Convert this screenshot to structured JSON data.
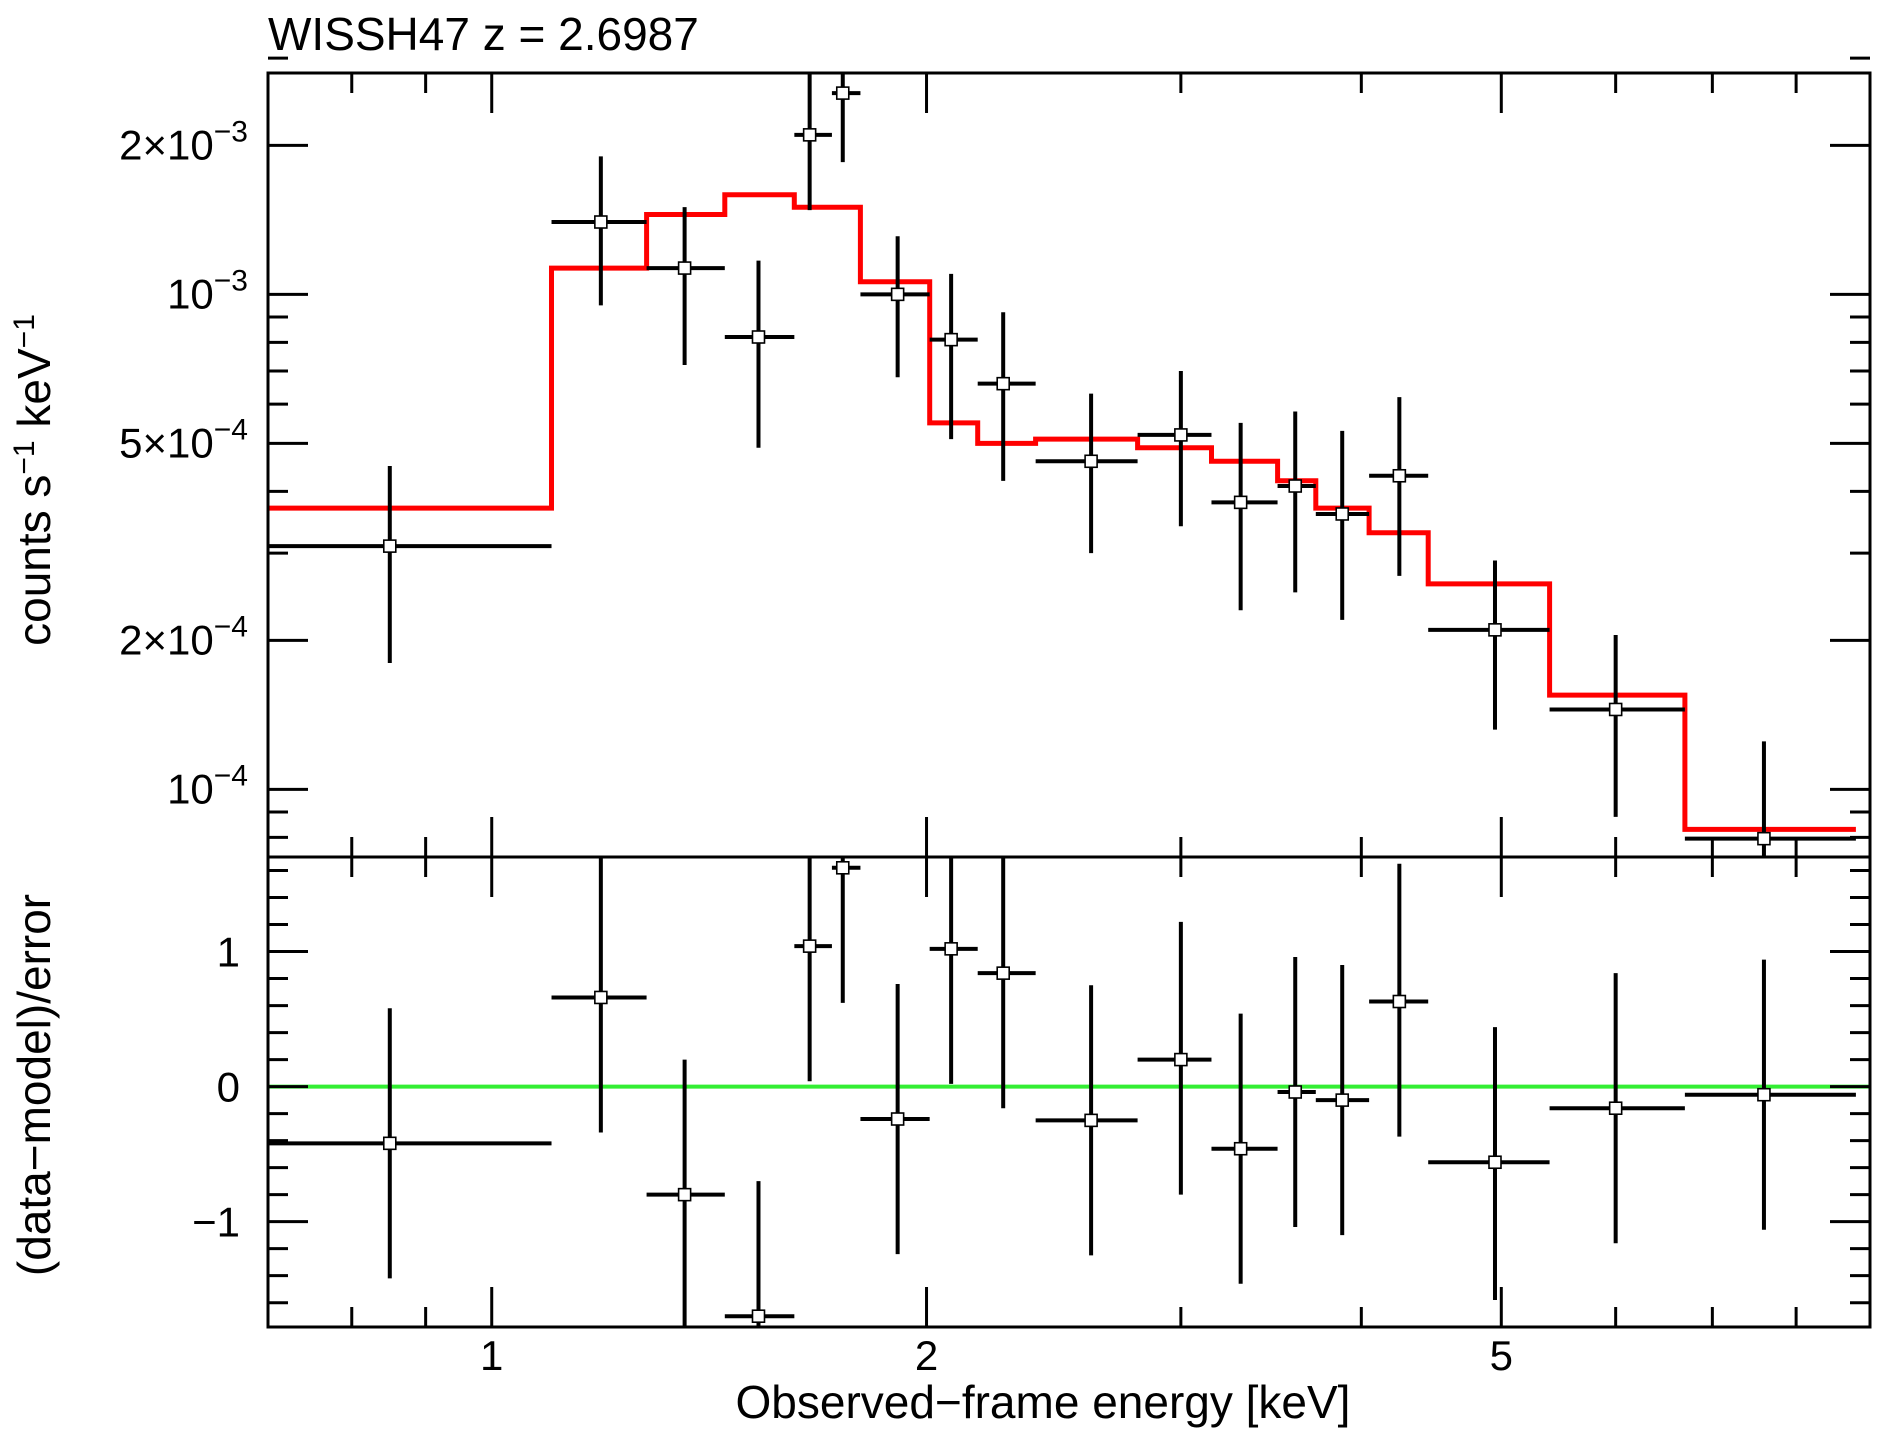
{
  "chart_data": {
    "type": "step-with-errorbars",
    "title": "WISSH47 z = 2.6987",
    "xlabel": "Observed−frame energy [keV]",
    "xscale": "log",
    "xlim": [
      0.7,
      9.0
    ],
    "x_ticks": [
      {
        "value": 1,
        "label": "1"
      },
      {
        "value": 2,
        "label": "2"
      },
      {
        "value": 5,
        "label": "5"
      }
    ],
    "x_minor_ticks": [
      0.8,
      0.9,
      3,
      4,
      6,
      7,
      8,
      9
    ],
    "colors": {
      "data": "#000000",
      "model": "#ff0000",
      "zero_line": "#33ee33",
      "frame": "#000000"
    },
    "panels": [
      {
        "name": "spectrum",
        "ylabel_parts": {
          "base1": "counts s",
          "sup1": "−1",
          "base2": " keV",
          "sup2": "−1"
        },
        "yscale": "log",
        "ylim": [
          7.3e-05,
          0.0028
        ],
        "y_ticks": [
          {
            "value": 0.0001,
            "mant": "",
            "exp": "−4"
          },
          {
            "value": 0.0002,
            "mant": "2×",
            "exp": "−4"
          },
          {
            "value": 0.0005,
            "mant": "5×",
            "exp": "−4"
          },
          {
            "value": 0.001,
            "mant": "",
            "exp": "−3"
          },
          {
            "value": 0.002,
            "mant": "2×",
            "exp": "−3"
          }
        ],
        "y_minor_ticks": [
          8e-05,
          9e-05,
          0.0003,
          0.0004,
          0.0006,
          0.0007,
          0.0008,
          0.0009,
          0.003
        ],
        "series": [
          {
            "name": "data",
            "points": [
              {
                "x": 0.85,
                "xlo": 0.7,
                "xhi": 1.1,
                "y": 0.00031,
                "ylo": 0.00018,
                "yhi": 0.00045
              },
              {
                "x": 1.19,
                "xlo": 1.1,
                "xhi": 1.28,
                "y": 0.0014,
                "ylo": 0.00095,
                "yhi": 0.0019
              },
              {
                "x": 1.36,
                "xlo": 1.28,
                "xhi": 1.45,
                "y": 0.00113,
                "ylo": 0.00072,
                "yhi": 0.0015
              },
              {
                "x": 1.53,
                "xlo": 1.45,
                "xhi": 1.62,
                "y": 0.00082,
                "ylo": 0.00049,
                "yhi": 0.00117
              },
              {
                "x": 1.66,
                "xlo": 1.62,
                "xhi": 1.72,
                "y": 0.0021,
                "ylo": 0.00148,
                "yhi": 0.0029
              },
              {
                "x": 1.75,
                "xlo": 1.72,
                "xhi": 1.8,
                "y": 0.00255,
                "ylo": 0.00185,
                "yhi": 0.0029
              },
              {
                "x": 1.91,
                "xlo": 1.8,
                "xhi": 2.01,
                "y": 0.001,
                "ylo": 0.00068,
                "yhi": 0.00131
              },
              {
                "x": 2.08,
                "xlo": 2.01,
                "xhi": 2.17,
                "y": 0.00081,
                "ylo": 0.00051,
                "yhi": 0.0011
              },
              {
                "x": 2.26,
                "xlo": 2.17,
                "xhi": 2.38,
                "y": 0.00066,
                "ylo": 0.00042,
                "yhi": 0.00092
              },
              {
                "x": 2.6,
                "xlo": 2.38,
                "xhi": 2.8,
                "y": 0.00046,
                "ylo": 0.0003,
                "yhi": 0.00063
              },
              {
                "x": 3.0,
                "xlo": 2.8,
                "xhi": 3.15,
                "y": 0.00052,
                "ylo": 0.00034,
                "yhi": 0.0007
              },
              {
                "x": 3.3,
                "xlo": 3.15,
                "xhi": 3.5,
                "y": 0.00038,
                "ylo": 0.00023,
                "yhi": 0.00055
              },
              {
                "x": 3.6,
                "xlo": 3.5,
                "xhi": 3.72,
                "y": 0.00041,
                "ylo": 0.00025,
                "yhi": 0.00058
              },
              {
                "x": 3.88,
                "xlo": 3.72,
                "xhi": 4.05,
                "y": 0.00036,
                "ylo": 0.00022,
                "yhi": 0.00053
              },
              {
                "x": 4.25,
                "xlo": 4.05,
                "xhi": 4.45,
                "y": 0.00043,
                "ylo": 0.00027,
                "yhi": 0.00062
              },
              {
                "x": 4.95,
                "xlo": 4.45,
                "xhi": 5.4,
                "y": 0.00021,
                "ylo": 0.000132,
                "yhi": 0.00029
              },
              {
                "x": 6.0,
                "xlo": 5.4,
                "xhi": 6.7,
                "y": 0.000145,
                "ylo": 8.8e-05,
                "yhi": 0.000205
              },
              {
                "x": 7.6,
                "xlo": 6.7,
                "xhi": 8.8,
                "y": 7.95e-05,
                "ylo": 7.35e-05,
                "yhi": 0.000125
              }
            ]
          },
          {
            "name": "model",
            "bin_edges": [
              0.7,
              1.1,
              1.28,
              1.45,
              1.62,
              1.8,
              2.01,
              2.17,
              2.38,
              2.8,
              3.15,
              3.5,
              3.72,
              4.05,
              4.45,
              5.4,
              6.7,
              8.8
            ],
            "values": [
              0.00037,
              0.00113,
              0.00145,
              0.00159,
              0.0015,
              0.00106,
              0.00055,
              0.0005,
              0.00051,
              0.00049,
              0.00046,
              0.00042,
              0.00037,
              0.00033,
              0.00026,
              0.000155,
              8.3e-05
            ]
          }
        ]
      },
      {
        "name": "residuals",
        "ylabel": "(data−model)/error",
        "yscale": "linear",
        "ylim": [
          -1.78,
          1.7
        ],
        "y_ticks": [
          {
            "value": -1,
            "label": "−1"
          },
          {
            "value": 0,
            "label": "0"
          },
          {
            "value": 1,
            "label": "1"
          }
        ],
        "y_minor_ticks": [
          -1.6,
          -1.4,
          -1.2,
          -0.8,
          -0.6,
          -0.4,
          -0.2,
          0.2,
          0.4,
          0.6,
          0.8,
          1.2,
          1.4,
          1.6
        ],
        "zero_line": 0,
        "series": [
          {
            "name": "residuals",
            "points": [
              {
                "x": 0.85,
                "xlo": 0.7,
                "xhi": 1.1,
                "y": -0.42,
                "ylo": -1.42,
                "yhi": 0.58
              },
              {
                "x": 1.19,
                "xlo": 1.1,
                "xhi": 1.28,
                "y": 0.66,
                "ylo": -0.34,
                "yhi": 1.7
              },
              {
                "x": 1.36,
                "xlo": 1.28,
                "xhi": 1.45,
                "y": -0.8,
                "ylo": -1.78,
                "yhi": 0.2
              },
              {
                "x": 1.53,
                "xlo": 1.45,
                "xhi": 1.62,
                "y": -1.7,
                "ylo": -1.78,
                "yhi": -0.7
              },
              {
                "x": 1.66,
                "xlo": 1.62,
                "xhi": 1.72,
                "y": 1.04,
                "ylo": 0.04,
                "yhi": 1.7
              },
              {
                "x": 1.75,
                "xlo": 1.72,
                "xhi": 1.8,
                "y": 1.62,
                "ylo": 0.62,
                "yhi": 1.7
              },
              {
                "x": 1.91,
                "xlo": 1.8,
                "xhi": 2.01,
                "y": -0.24,
                "ylo": -1.24,
                "yhi": 0.76
              },
              {
                "x": 2.08,
                "xlo": 2.01,
                "xhi": 2.17,
                "y": 1.02,
                "ylo": 0.02,
                "yhi": 1.7
              },
              {
                "x": 2.26,
                "xlo": 2.17,
                "xhi": 2.38,
                "y": 0.84,
                "ylo": -0.16,
                "yhi": 1.7
              },
              {
                "x": 2.6,
                "xlo": 2.38,
                "xhi": 2.8,
                "y": -0.25,
                "ylo": -1.25,
                "yhi": 0.75
              },
              {
                "x": 3.0,
                "xlo": 2.8,
                "xhi": 3.15,
                "y": 0.2,
                "ylo": -0.8,
                "yhi": 1.22
              },
              {
                "x": 3.3,
                "xlo": 3.15,
                "xhi": 3.5,
                "y": -0.46,
                "ylo": -1.46,
                "yhi": 0.54
              },
              {
                "x": 3.6,
                "xlo": 3.5,
                "xhi": 3.72,
                "y": -0.04,
                "ylo": -1.04,
                "yhi": 0.96
              },
              {
                "x": 3.88,
                "xlo": 3.72,
                "xhi": 4.05,
                "y": -0.1,
                "ylo": -1.1,
                "yhi": 0.9
              },
              {
                "x": 4.25,
                "xlo": 4.05,
                "xhi": 4.45,
                "y": 0.63,
                "ylo": -0.37,
                "yhi": 1.65
              },
              {
                "x": 4.95,
                "xlo": 4.45,
                "xhi": 5.4,
                "y": -0.56,
                "ylo": -1.58,
                "yhi": 0.44
              },
              {
                "x": 6.0,
                "xlo": 5.4,
                "xhi": 6.7,
                "y": -0.16,
                "ylo": -1.16,
                "yhi": 0.84
              },
              {
                "x": 7.6,
                "xlo": 6.7,
                "xhi": 8.8,
                "y": -0.06,
                "ylo": -1.06,
                "yhi": 0.94
              }
            ]
          }
        ]
      }
    ]
  }
}
